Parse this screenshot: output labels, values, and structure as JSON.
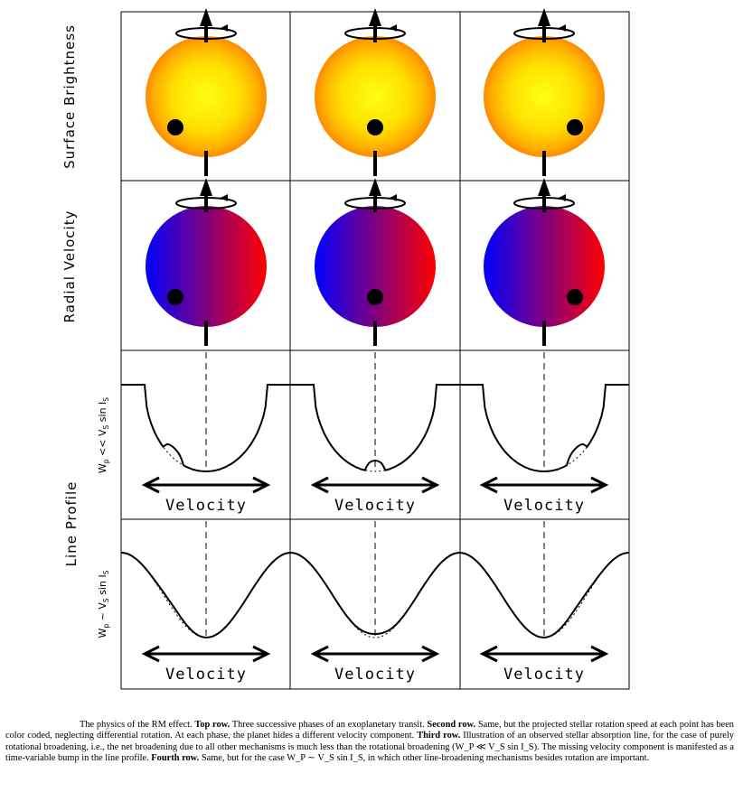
{
  "row_labels": {
    "surface_brightness": "Surface Brightness",
    "radial_velocity": "Radial Velocity",
    "line_profile": "Line Profile",
    "third_row": {
      "w": "W",
      "w_sub": "p",
      "rel": " << V",
      "v_sub": "S",
      "sin": " sin I",
      "i_sub": "S"
    },
    "fourth_row": {
      "w": "W",
      "w_sub": "p",
      "rel": " ~ V",
      "v_sub": "S",
      "sin": " sin I",
      "i_sub": "S"
    }
  },
  "axis_label": "Velocity",
  "planet_phases": [
    "left",
    "center",
    "right"
  ],
  "colors": {
    "brightness_center": "#ffff00",
    "brightness_edge": "#ff7a00",
    "velocity_blue": "#0000ff",
    "velocity_red": "#ff0000",
    "velocity_mid": "#7a0096"
  },
  "caption": {
    "intro": "The physics of the RM effect. ",
    "top_row_label": "Top row.",
    "top_row_text": " Three successive phases of an exoplanetary transit. ",
    "second_row_label": "Second row.",
    "second_row_text": " Same, but the projected stellar rotation speed at each point has been color coded, neglecting differential rotation. At each phase, the planet hides a different velocity component. ",
    "third_row_label": "Third row.",
    "third_row_text": " Illustration of an observed stellar absorption line, for the case of purely rotational broadening, i.e., the net broadening due to all other mechanisms is much less than the rotational broadening (W_P ≪ V_S sin I_S). The missing velocity component is manifested as a time-variable bump in the line profile. ",
    "fourth_row_label": "Fourth row.",
    "fourth_row_text": " Same, but for the case W_P ∼ V_S sin I_S, in which other line-broadening mechanisms besides rotation are important."
  }
}
